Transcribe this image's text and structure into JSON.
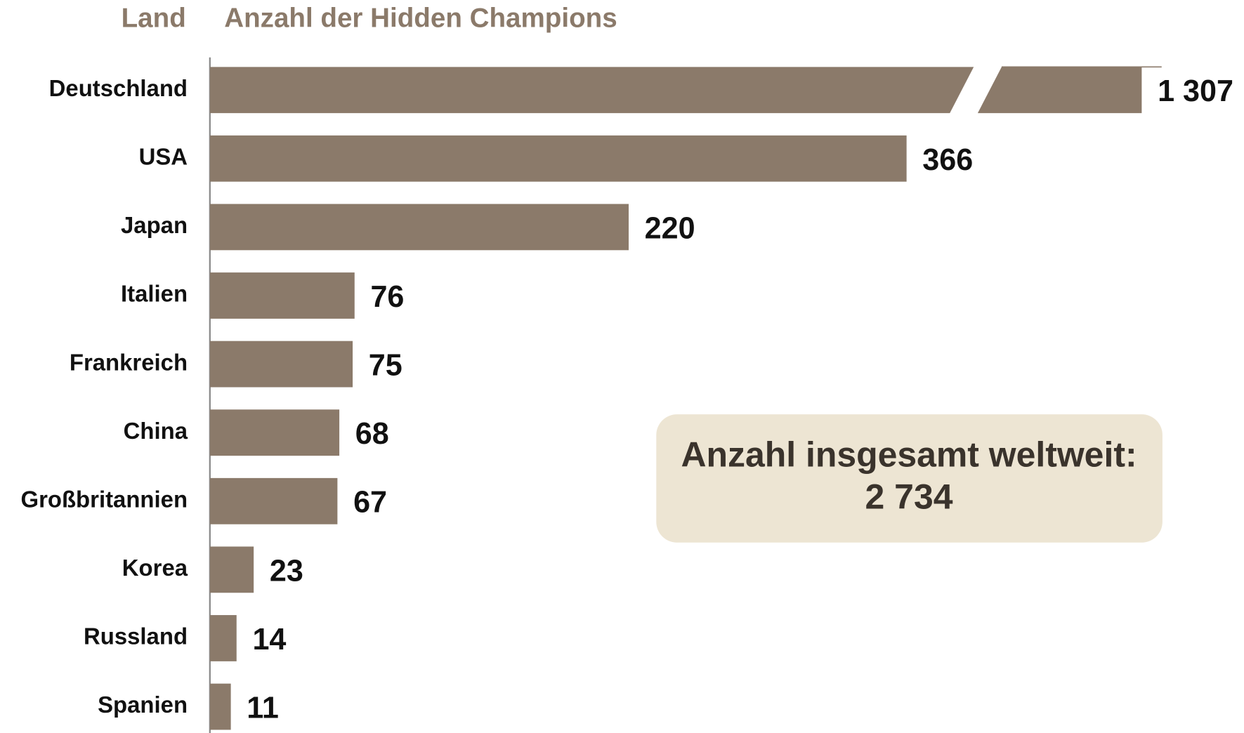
{
  "chart_data": {
    "type": "bar",
    "orientation": "horizontal",
    "y_label": "Land",
    "x_label": "Anzahl der Hidden Champions",
    "categories": [
      "Deutschland",
      "USA",
      "Japan",
      "Italien",
      "Frankreich",
      "China",
      "Großbritannien",
      "Korea",
      "Russland",
      "Spanien"
    ],
    "values": [
      1307,
      366,
      220,
      76,
      75,
      68,
      67,
      23,
      14,
      11
    ],
    "value_labels": [
      "1 307",
      "366",
      "220",
      "76",
      "75",
      "68",
      "67",
      "23",
      "14",
      "11"
    ],
    "color": "#8b7a6a",
    "xlim": [
      0,
      500
    ],
    "axis_break": true,
    "annotation": {
      "text": "Anzahl insgesamt weltweit:",
      "value": 2734,
      "value_label": "2 734"
    }
  }
}
